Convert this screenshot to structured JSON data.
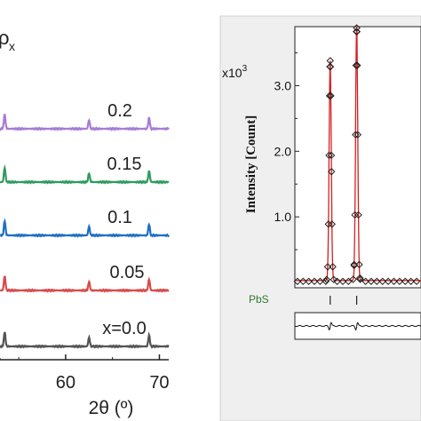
{
  "chart_data": [
    {
      "type": "line",
      "title_fragment": "ρ",
      "title_subscript": "x",
      "xlabel": "2θ (º)",
      "xlim": [
        53,
        71
      ],
      "x_ticks": [
        "60",
        "70"
      ],
      "grid": false,
      "series": [
        {
          "name": "0.2",
          "color": "#a77bd6",
          "peaks": [
            [
              53.5,
              0.9
            ],
            [
              62.5,
              0.55
            ],
            [
              68.9,
              0.7
            ]
          ]
        },
        {
          "name": "0.15",
          "color": "#2f9b5e",
          "peaks": [
            [
              53.5,
              0.9
            ],
            [
              62.5,
              0.55
            ],
            [
              68.9,
              0.7
            ]
          ]
        },
        {
          "name": "0.1",
          "color": "#1f6fc6",
          "peaks": [
            [
              53.5,
              0.9
            ],
            [
              62.5,
              0.55
            ],
            [
              68.9,
              0.7
            ]
          ]
        },
        {
          "name": "0.05",
          "color": "#d94a4a",
          "peaks": [
            [
              53.5,
              0.9
            ],
            [
              62.5,
              0.55
            ],
            [
              68.9,
              0.7
            ]
          ]
        },
        {
          "name": "x=0.0",
          "color": "#555555",
          "peaks": [
            [
              53.5,
              0.9
            ],
            [
              62.5,
              0.55
            ],
            [
              68.9,
              0.7
            ]
          ]
        }
      ]
    },
    {
      "type": "line",
      "ylabel": "Intensity [Count]",
      "y_multiplier": "x10",
      "y_multiplier_exp": "3",
      "ylim": [
        0,
        3.9
      ],
      "y_ticks": [
        "1.0",
        "2.0",
        "3.0"
      ],
      "phase_label": "PbS",
      "line_color": "#d42020",
      "marker": "diamond",
      "peaks": [
        {
          "center": 0.28,
          "height": 3.35
        },
        {
          "center": 0.49,
          "height": 3.9
        }
      ]
    }
  ]
}
